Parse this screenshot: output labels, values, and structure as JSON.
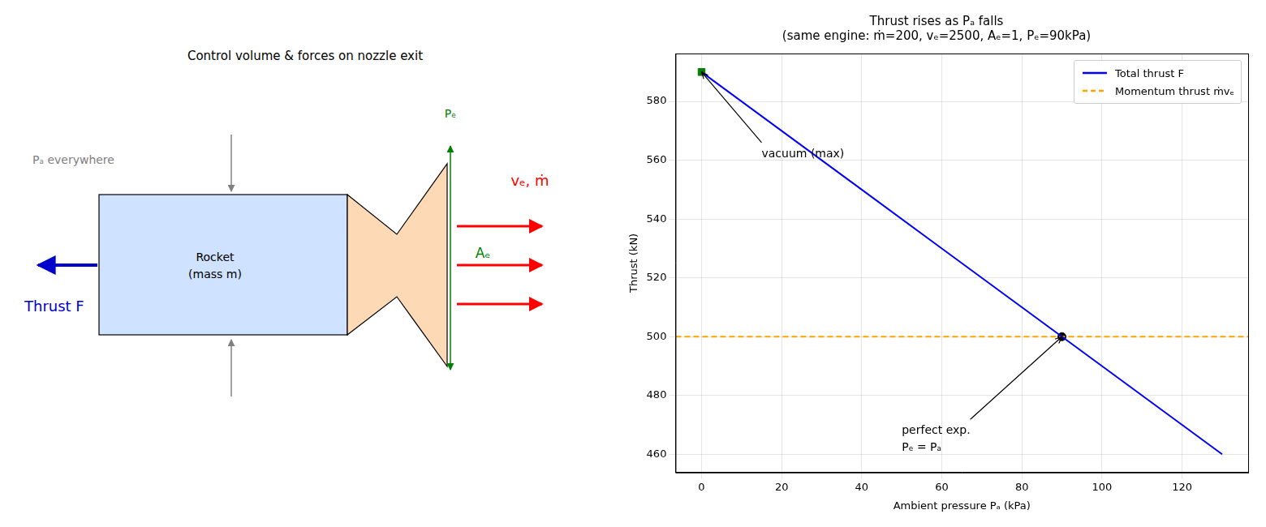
{
  "diagram": {
    "title": "Control volume & forces on nozzle exit",
    "ambient_label": "Pₐ everywhere",
    "body_label": [
      "Rocket",
      "(mass m)"
    ],
    "thrust_label": "Thrust F",
    "exit_pressure_label": "Pₑ",
    "exit_area_label": "Aₑ",
    "exhaust_label": "vₑ,  ṁ"
  },
  "chart_data": {
    "type": "line",
    "title": [
      "Thrust rises as Pₐ falls",
      "(same engine: ṁ=200, vₑ=2500, Aₑ=1, Pₑ=90kPa)"
    ],
    "x_label": "Ambient pressure Pₐ (kPa)",
    "y_label": "Thrust (kN)",
    "xlim": [
      -6.5,
      136.5
    ],
    "xticks": [
      0,
      20,
      40,
      60,
      80,
      100,
      120
    ],
    "ylim": [
      453.8,
      596.3
    ],
    "yticks": [
      460,
      480,
      500,
      520,
      540,
      560,
      580
    ],
    "grid": true,
    "legend": "upper right",
    "series": [
      {
        "name": "Total thrust F",
        "color": "#0000ff",
        "line_style": "solid",
        "x": [
          0,
          20,
          40,
          60,
          80,
          90,
          100,
          120,
          130
        ],
        "values": [
          590,
          570,
          550,
          530,
          510,
          500,
          490,
          470,
          460
        ]
      },
      {
        "name": "Momentum thrust ṁvₑ",
        "color": "#ffa500",
        "line_style": "dashed",
        "x": [
          -6.5,
          136.5
        ],
        "values": [
          500,
          500
        ]
      },
      {
        "color": "#008000",
        "marker": "square",
        "line_style": "none",
        "x": [
          0
        ],
        "values": [
          590
        ]
      },
      {
        "color": "#000000",
        "marker": "circle",
        "line_style": "none",
        "x": [
          90
        ],
        "values": [
          500
        ]
      }
    ],
    "annotations": [
      {
        "text": [
          "vacuum (max)"
        ],
        "x": 15,
        "y": 562,
        "arrow_x": 0,
        "arrow_y": 590
      },
      {
        "text": [
          "perfect exp.",
          "Pₑ = Pₐ"
        ],
        "x": 50,
        "y": 465,
        "arrow_x": 90,
        "arrow_y": 500
      }
    ]
  }
}
